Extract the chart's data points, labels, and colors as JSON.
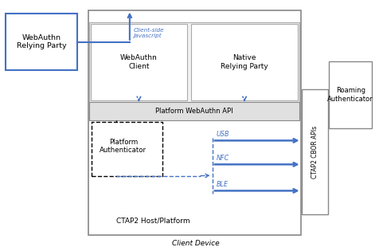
{
  "bg_color": "#ffffff",
  "blue": "#4472c4",
  "dark_gray": "#595959",
  "mid_gray": "#808080",
  "light_gray": "#f2f2f2",
  "med_gray": "#d9d9d9",
  "black": "#000000",
  "labels": {
    "webauthn_rp": "WebAuthn\nRelying Party",
    "webauthn_client": "WebAuthn\nClient",
    "native_rp": "Native\nRelying Party",
    "platform_api": "Platform WebAuthn API",
    "ctap2_host": "CTAP2 Host/Platform",
    "platform_auth": "Platform\nAuthenticator",
    "roaming_auth": "Roaming\nAuthenticator",
    "ctap2_cbor": "CTAP2 CBOR APIs",
    "client_side": "Client-side\nJavascript",
    "usb": "USB",
    "nfc": "NFC",
    "ble": "BLE",
    "client_device": "Client Device"
  },
  "boxes": {
    "client_device": [
      0.235,
      0.065,
      0.565,
      0.895
    ],
    "webauthn_rp": [
      0.015,
      0.72,
      0.19,
      0.225
    ],
    "upper_gray": [
      0.238,
      0.595,
      0.558,
      0.315
    ],
    "webauthn_client": [
      0.242,
      0.6,
      0.255,
      0.305
    ],
    "native_rp": [
      0.508,
      0.6,
      0.285,
      0.305
    ],
    "platform_api": [
      0.238,
      0.52,
      0.558,
      0.075
    ],
    "platform_auth_dash": [
      0.243,
      0.3,
      0.19,
      0.215
    ],
    "roaming_auth": [
      0.875,
      0.49,
      0.115,
      0.265
    ],
    "ctap2_cbor": [
      0.802,
      0.145,
      0.07,
      0.5
    ]
  }
}
